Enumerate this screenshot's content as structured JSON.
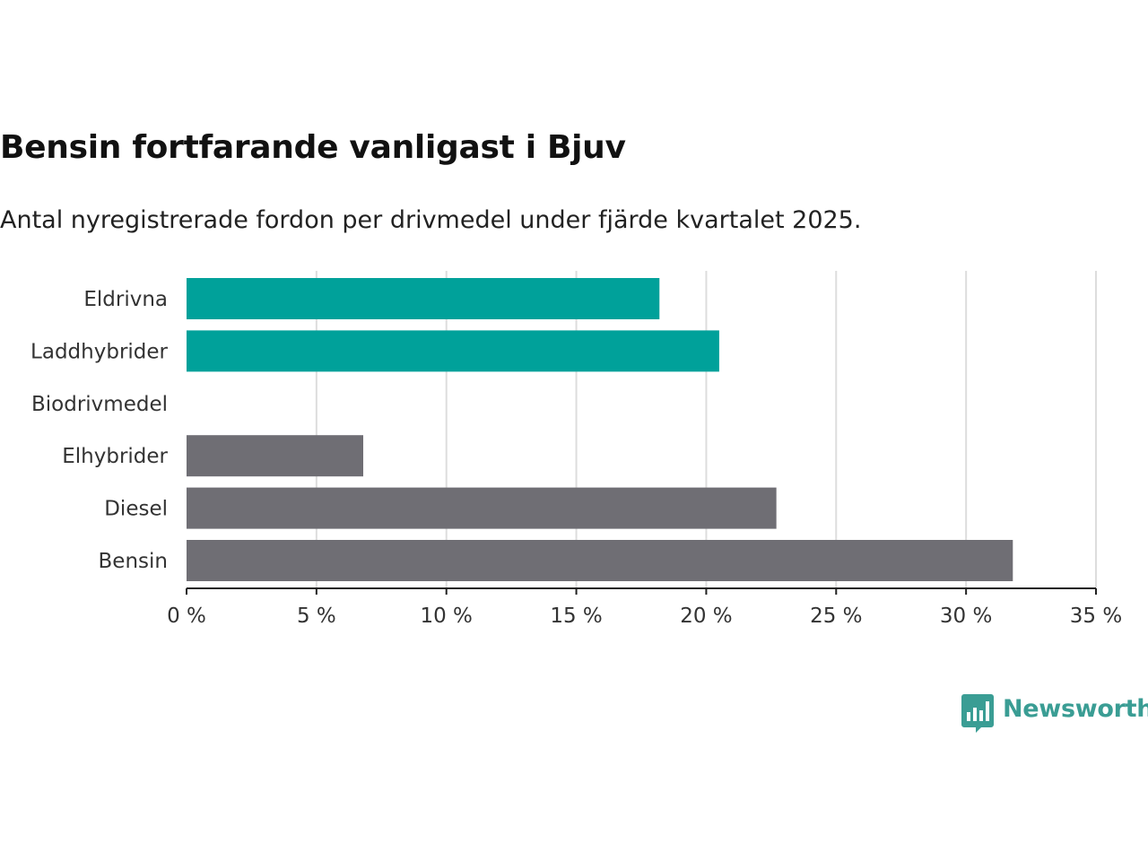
{
  "title": "Bensin fortfarande vanligast i Bjuv",
  "subtitle": "Antal nyregistrerade fordon per drivmedel under fjärde kvartalet 2025.",
  "chart_data": {
    "type": "bar",
    "orientation": "horizontal",
    "categories": [
      "Eldrivna",
      "Laddhybrider",
      "Biodrivmedel",
      "Elhybrider",
      "Diesel",
      "Bensin"
    ],
    "values": [
      18.2,
      20.5,
      0,
      6.8,
      22.7,
      31.8
    ],
    "bar_colors": [
      "#00a19a",
      "#00a19a",
      "#00a19a",
      "#6f6e74",
      "#6f6e74",
      "#6f6e74"
    ],
    "xlim": [
      0,
      35
    ],
    "xticks": [
      0,
      5,
      10,
      15,
      20,
      25,
      30,
      35
    ],
    "xtick_labels": [
      "0 %",
      "5 %",
      "10 %",
      "15 %",
      "20 %",
      "25 %",
      "30 %",
      "35 %"
    ],
    "xlabel": "",
    "ylabel": "",
    "grid": "vertical"
  },
  "brand": {
    "name": "Newsworthy",
    "color": "#3a9d94",
    "icon": "newsworthy-logo-icon"
  }
}
